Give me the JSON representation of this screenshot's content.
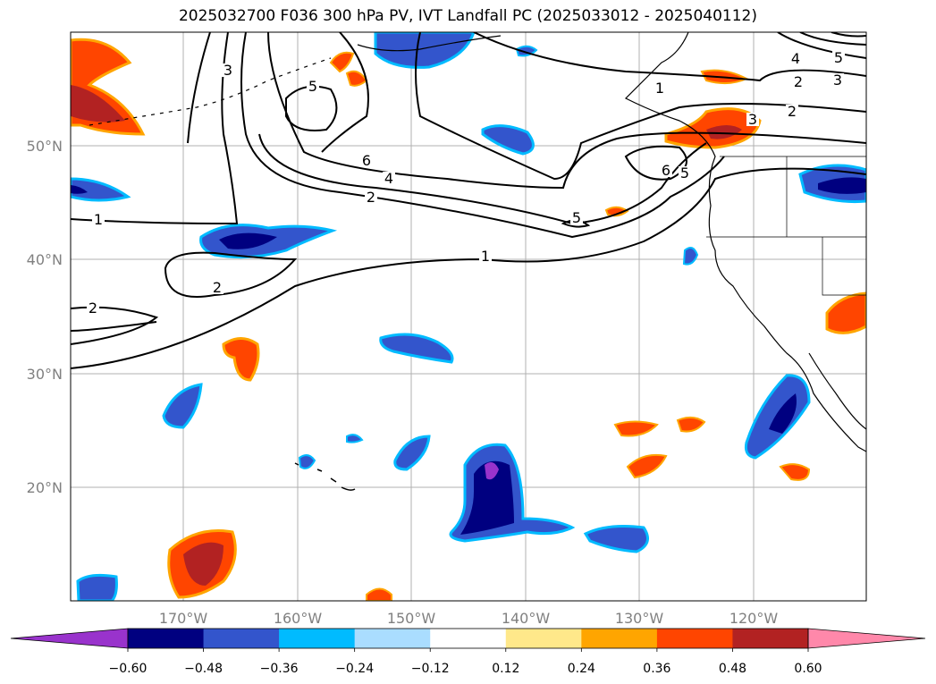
{
  "title": "2025032700 F036 300 hPa PV, IVT Landfall PC (2025033012 - 2025040112)",
  "map": {
    "projection": "PlateCarree",
    "lon_range": [
      -180,
      -110
    ],
    "lat_range": [
      10,
      60
    ],
    "grid": true,
    "lat_labels": [
      "50°N",
      "40°N",
      "30°N",
      "20°N"
    ],
    "lon_labels": [
      "170°W",
      "160°W",
      "150°W",
      "140°W",
      "130°W",
      "120°W"
    ],
    "contour_labels": [
      "3",
      "5",
      "6",
      "4",
      "2",
      "1",
      "5",
      "1",
      "2",
      "2",
      "1",
      "6",
      "5",
      "3",
      "2",
      "1",
      "2",
      "3",
      "4",
      "5"
    ]
  },
  "colorbar": {
    "ticks": [
      "−0.60",
      "−0.48",
      "−0.36",
      "−0.24",
      "−0.12",
      "0.12",
      "0.24",
      "0.36",
      "0.48",
      "0.60"
    ],
    "colors": [
      "#9933cc",
      "#000080",
      "#3355cc",
      "#00bbff",
      "#aaddff",
      "#ffffff",
      "#ffe88a",
      "#ffa500",
      "#ff4500",
      "#b22222",
      "#ff88aa"
    ],
    "extend": "both"
  }
}
